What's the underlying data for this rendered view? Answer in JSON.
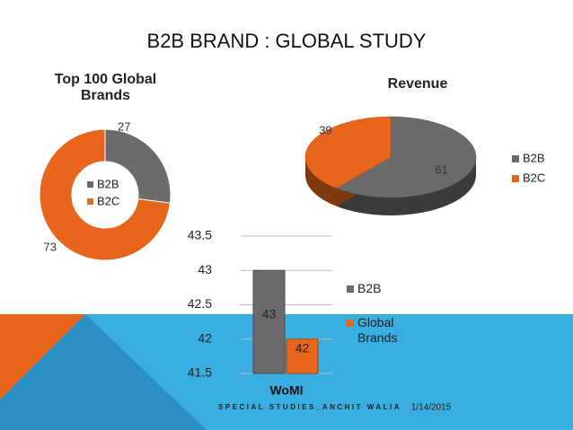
{
  "title": "B2B BRAND : GLOBAL STUDY",
  "footer": "SPECIAL STUDIES_ANCHIT WALIA",
  "date": "1/14/2015",
  "chart_data": [
    {
      "type": "doughnut",
      "title": "Top 100 Global Brands",
      "categories": [
        "B2B",
        "B2C"
      ],
      "values": [
        27,
        73
      ],
      "colors": [
        "#6b6b6b",
        "#e8661c"
      ],
      "legend": "inside"
    },
    {
      "type": "pie3d",
      "title": "Revenue",
      "categories": [
        "B2B",
        "B2C"
      ],
      "values": [
        61,
        39
      ],
      "colors": [
        "#6b6b6b",
        "#e8661c"
      ],
      "legend": "right"
    },
    {
      "type": "bar",
      "categories": [
        "WoMI"
      ],
      "series": [
        {
          "name": "B2B",
          "color": "#6b6b6b",
          "values": [
            43
          ]
        },
        {
          "name": "Global Brands",
          "color": "#e8661c",
          "values": [
            42
          ]
        }
      ],
      "ylim": [
        41.5,
        43.5
      ],
      "yticks": [
        41.5,
        42,
        42.5,
        43,
        43.5
      ],
      "grid": true,
      "legend": "right"
    }
  ]
}
